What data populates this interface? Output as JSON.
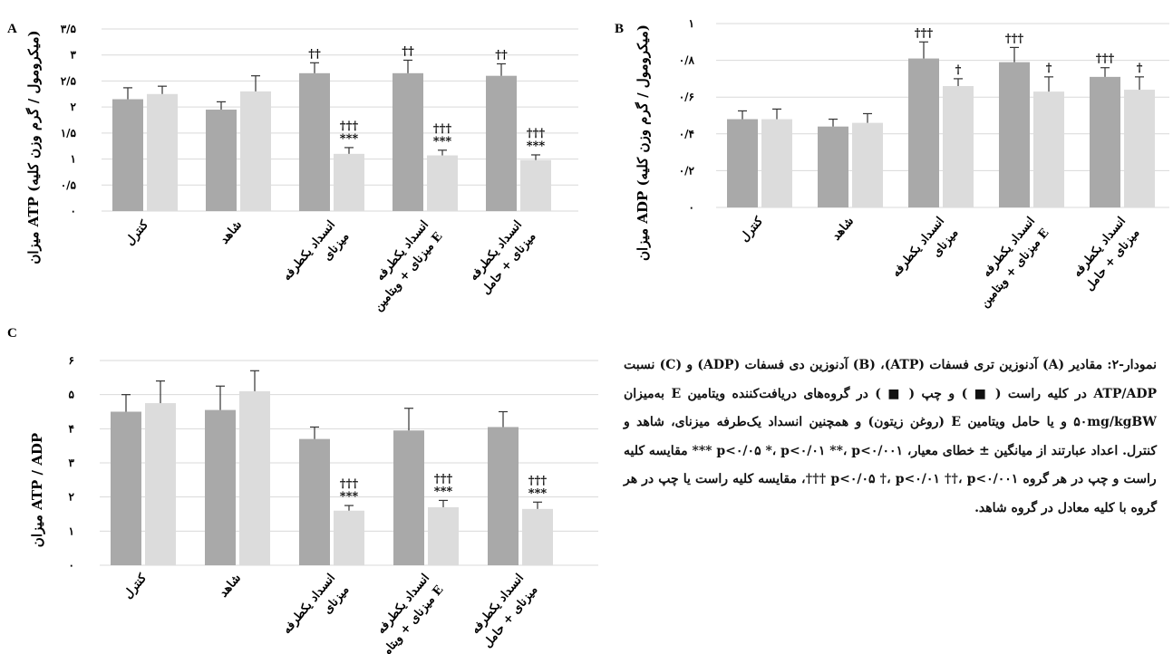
{
  "colors": {
    "right_kidney": "#a9a9a9",
    "left_kidney": "#dcdcdc",
    "error_bar": "#333333",
    "grid": "#d9d9d9"
  },
  "caption": "نمودار-۲: مقادیر (A) آدنوزین تری فسفات (ATP)، (B) آدنوزین دی فسفات (ADP) و (C) نسبت ATP/ADP در کلیه راست ( ■ ) و چپ ( ■ ) در گروه‌های دریافت‌کننده ویتامین E به‌میزان ۵۰mg/kgBW و یا حامل ویتامین E (روغن زیتون) و همچنین انسداد یک‌طرفه میزنای، شاهد و کنترل. اعداد عبارتند از میانگین ± خطای معیار، p<۰/۰۵ *، p<۰/۰۱ **، p<۰/۰۰۱ *** مقایسه کلیه راست و چپ در هر گروه p<۰/۰۵ †، p<۰/۰۱ ††، p<۰/۰۰۱ †††، مقایسه کلیه راست یا چپ در هر گروه با کلیه معادل در گروه شاهد.",
  "chart_data": [
    {
      "panel": "A",
      "type": "bar",
      "ylabel": "میزان ATP (میکرومول / گرم وزن کلیه)",
      "ylim": [
        0,
        3.5
      ],
      "ytick_labels": [
        "۰",
        "۰/۵",
        "۱",
        "۱/۵",
        "۲",
        "۲/۵",
        "۳",
        "۳/۵"
      ],
      "grid": true,
      "categories": [
        [
          "کنترل"
        ],
        [
          "شاهد"
        ],
        [
          "انسداد یکطرفه",
          "میزنای"
        ],
        [
          "انسداد یکطرفه",
          "میزنای + ویتامین E"
        ],
        [
          "انسداد یکطرفه",
          "میزنای + حامل"
        ]
      ],
      "series": [
        {
          "values": [
            2.15,
            1.95,
            2.65,
            2.65,
            2.6
          ],
          "errors": [
            0.22,
            0.15,
            0.2,
            0.25,
            0.23
          ]
        },
        {
          "values": [
            2.25,
            2.3,
            1.1,
            1.07,
            0.98
          ],
          "errors": [
            0.15,
            0.3,
            0.12,
            0.1,
            0.1
          ]
        }
      ],
      "annotations": [
        {
          "category": 2,
          "series": 0,
          "lines": [
            "††"
          ]
        },
        {
          "category": 3,
          "series": 0,
          "lines": [
            "††"
          ]
        },
        {
          "category": 4,
          "series": 0,
          "lines": [
            "††"
          ]
        },
        {
          "category": 2,
          "series": 1,
          "lines": [
            "†††",
            "***"
          ]
        },
        {
          "category": 3,
          "series": 1,
          "lines": [
            "†††",
            "***"
          ]
        },
        {
          "category": 4,
          "series": 1,
          "lines": [
            "†††",
            "***"
          ]
        }
      ]
    },
    {
      "panel": "B",
      "type": "bar",
      "ylabel": "میزان ADP (میکرومول / گرم وزن کلیه)",
      "ylim": [
        0,
        1
      ],
      "ytick_labels": [
        "۰",
        "۰/۲",
        "۰/۴",
        "۰/۶",
        "۰/۸",
        "۱"
      ],
      "grid": true,
      "categories": [
        [
          "کنترل"
        ],
        [
          "شاهد"
        ],
        [
          "انسداد یکطرفه",
          "میزنای"
        ],
        [
          "انسداد یکطرفه",
          "میزنای + ویتامین E"
        ],
        [
          "انسداد یکطرفه",
          "میزنای + حامل"
        ]
      ],
      "series": [
        {
          "values": [
            0.48,
            0.44,
            0.81,
            0.79,
            0.71
          ],
          "errors": [
            0.045,
            0.04,
            0.09,
            0.08,
            0.05
          ]
        },
        {
          "values": [
            0.48,
            0.46,
            0.66,
            0.63,
            0.64
          ],
          "errors": [
            0.055,
            0.05,
            0.04,
            0.08,
            0.07
          ]
        }
      ],
      "annotations": [
        {
          "category": 2,
          "series": 0,
          "lines": [
            "†††"
          ]
        },
        {
          "category": 3,
          "series": 0,
          "lines": [
            "†††"
          ]
        },
        {
          "category": 4,
          "series": 0,
          "lines": [
            "†††"
          ]
        },
        {
          "category": 2,
          "series": 1,
          "lines": [
            "†"
          ]
        },
        {
          "category": 3,
          "series": 1,
          "lines": [
            "†"
          ]
        },
        {
          "category": 4,
          "series": 1,
          "lines": [
            "†"
          ]
        }
      ]
    },
    {
      "panel": "C",
      "type": "bar",
      "ylabel": "میزان ATP / ADP",
      "ylim": [
        0,
        6
      ],
      "ytick_labels": [
        "۰",
        "۱",
        "۲",
        "۳",
        "۴",
        "۵",
        "۶"
      ],
      "grid": true,
      "categories": [
        [
          "کنترل"
        ],
        [
          "شاهد"
        ],
        [
          "انسداد یکطرفه",
          "میزنای"
        ],
        [
          "انسداد یکطرفه",
          "میزنای + ویتامین E"
        ],
        [
          "انسداد یکطرفه",
          "میزنای + حامل"
        ]
      ],
      "series": [
        {
          "values": [
            4.5,
            4.55,
            3.7,
            3.95,
            4.05
          ],
          "errors": [
            0.5,
            0.7,
            0.35,
            0.65,
            0.45
          ]
        },
        {
          "values": [
            4.75,
            5.1,
            1.6,
            1.7,
            1.65
          ],
          "errors": [
            0.65,
            0.6,
            0.15,
            0.2,
            0.2
          ]
        }
      ],
      "annotations": [
        {
          "category": 2,
          "series": 1,
          "lines": [
            "†††",
            "***"
          ]
        },
        {
          "category": 3,
          "series": 1,
          "lines": [
            "†††",
            "***"
          ]
        },
        {
          "category": 4,
          "series": 1,
          "lines": [
            "†††",
            "***"
          ]
        }
      ]
    }
  ]
}
